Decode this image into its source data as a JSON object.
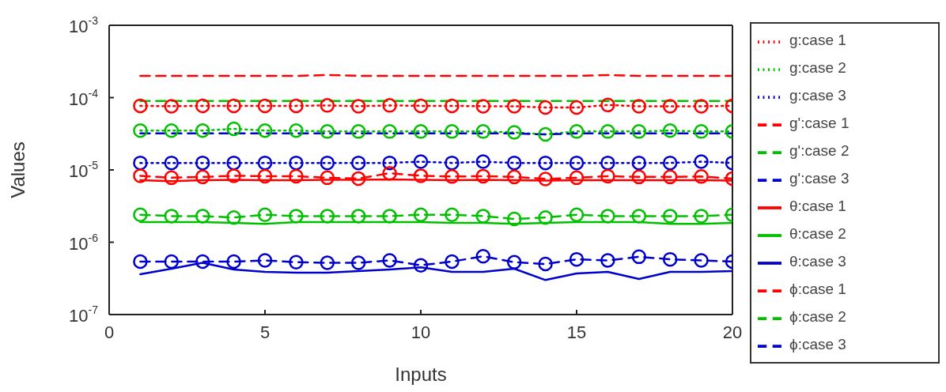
{
  "chart_data": {
    "type": "line",
    "xlabel": "Inputs",
    "ylabel": "Values",
    "log": "y",
    "x": [
      1,
      2,
      3,
      4,
      5,
      6,
      7,
      8,
      9,
      10,
      11,
      12,
      13,
      14,
      15,
      16,
      17,
      18,
      19,
      20
    ],
    "xlim": [
      0,
      20
    ],
    "xticks": [
      0,
      5,
      10,
      15,
      20
    ],
    "ylim": [
      1e-07,
      0.001
    ],
    "yticks": [
      {
        "value": 1e-07,
        "label": "10$^{-7}$"
      },
      {
        "value": 1e-06,
        "label": "10$^{-6}$"
      },
      {
        "value": 1e-05,
        "label": "10$^{-5}$"
      },
      {
        "value": 0.0001,
        "label": "10$^{-4}$"
      },
      {
        "value": 0.001,
        "label": "10$^{-3}$"
      }
    ],
    "grid": false,
    "legend": "right",
    "series": [
      {
        "name": "g:case 1",
        "color": "#ff0000",
        "line_style": "dotted",
        "marker": "circle",
        "values": [
          7.7e-05,
          7.6e-05,
          7.7e-05,
          7.7e-05,
          7.7e-05,
          7.7e-05,
          7.8e-05,
          7.6e-05,
          7.8e-05,
          7.7e-05,
          7.7e-05,
          7.6e-05,
          7.6e-05,
          7.3e-05,
          7.3e-05,
          7.9e-05,
          7.6e-05,
          7.6e-05,
          7.6e-05,
          7.7e-05
        ]
      },
      {
        "name": "g:case 2",
        "color": "#00c000",
        "line_style": "dotted",
        "marker": "circle",
        "values": [
          3.5e-05,
          3.5e-05,
          3.5e-05,
          3.7e-05,
          3.5e-05,
          3.5e-05,
          3.4e-05,
          3.4e-05,
          3.4e-05,
          3.4e-05,
          3.4e-05,
          3.4e-05,
          3.3e-05,
          3.1e-05,
          3.4e-05,
          3.4e-05,
          3.4e-05,
          3.5e-05,
          3.4e-05,
          3.4e-05
        ]
      },
      {
        "name": "g:case 3",
        "color": "#0000cc",
        "line_style": "dotted",
        "marker": "circle",
        "values": [
          1.25e-05,
          1.25e-05,
          1.25e-05,
          1.25e-05,
          1.25e-05,
          1.25e-05,
          1.25e-05,
          1.25e-05,
          1.25e-05,
          1.3e-05,
          1.25e-05,
          1.3e-05,
          1.25e-05,
          1.25e-05,
          1.25e-05,
          1.25e-05,
          1.25e-05,
          1.25e-05,
          1.3e-05,
          1.25e-05
        ]
      },
      {
        "name": "g':case 1",
        "color": "#ff0000",
        "line_style": "dashed",
        "marker": "none",
        "values": [
          0.0002,
          0.0002,
          0.0002,
          0.0002,
          0.0002,
          0.0002,
          0.000205,
          0.0002,
          0.0002,
          0.0002,
          0.0002,
          0.0002,
          0.0002,
          0.0002,
          0.0002,
          0.000205,
          0.0002,
          0.0002,
          0.0002,
          0.0002
        ]
      },
      {
        "name": "g':case 2",
        "color": "#00c000",
        "line_style": "dashed",
        "marker": "none",
        "values": [
          9e-05,
          9e-05,
          9e-05,
          9e-05,
          9e-05,
          9e-05,
          9e-05,
          9e-05,
          9e-05,
          9e-05,
          9e-05,
          9e-05,
          9e-05,
          9e-05,
          9e-05,
          9e-05,
          9e-05,
          9e-05,
          9e-05,
          9e-05
        ]
      },
      {
        "name": "g':case 3",
        "color": "#0000cc",
        "line_style": "dashed",
        "marker": "none",
        "values": [
          3.2e-05,
          3.2e-05,
          3.2e-05,
          3.2e-05,
          3.2e-05,
          3.2e-05,
          3.2e-05,
          3.2e-05,
          3.2e-05,
          3.2e-05,
          3.2e-05,
          3.2e-05,
          3.2e-05,
          3.1e-05,
          3.2e-05,
          3.2e-05,
          3.2e-05,
          3.2e-05,
          3.2e-05,
          3.2e-05
        ]
      },
      {
        "name": "θ:case 1",
        "color": "#ff0000",
        "line_style": "solid",
        "marker": "none",
        "values": [
          7.2e-06,
          7e-06,
          7.2e-06,
          7.3e-06,
          7.2e-06,
          7.2e-06,
          7.3e-06,
          7.3e-06,
          7.4e-06,
          7.3e-06,
          7.2e-06,
          7.3e-06,
          7.2e-06,
          7.1e-06,
          7.2e-06,
          7.2e-06,
          7.2e-06,
          7.2e-06,
          7.2e-06,
          7.1e-06
        ]
      },
      {
        "name": "θ:case 2",
        "color": "#00c000",
        "line_style": "solid",
        "marker": "none",
        "values": [
          1.9e-06,
          1.9e-06,
          1.9e-06,
          1.85e-06,
          1.8e-06,
          1.9e-06,
          1.9e-06,
          1.9e-06,
          1.9e-06,
          1.9e-06,
          1.85e-06,
          1.85e-06,
          1.8e-06,
          1.85e-06,
          1.9e-06,
          1.9e-06,
          1.9e-06,
          1.8e-06,
          1.8e-06,
          1.85e-06
        ]
      },
      {
        "name": "θ:case 3",
        "color": "#0000cc",
        "line_style": "solid",
        "marker": "none",
        "values": [
          3.6e-07,
          4.3e-07,
          5.2e-07,
          4.2e-07,
          3.9e-07,
          3.8e-07,
          3.8e-07,
          4e-07,
          4.2e-07,
          4.5e-07,
          3.9e-07,
          3.9e-07,
          4.3e-07,
          3e-07,
          3.7e-07,
          3.9e-07,
          3.1e-07,
          3.9e-07,
          3.9e-07,
          4e-07
        ]
      },
      {
        "name": "ϕ:case 1",
        "color": "#ff0000",
        "line_style": "dashed",
        "marker": "circle",
        "values": [
          8.3e-06,
          7.8e-06,
          8e-06,
          8.3e-06,
          8.2e-06,
          8.2e-06,
          7.8e-06,
          7.6e-06,
          9e-06,
          8.3e-06,
          8.1e-06,
          8.2e-06,
          8e-06,
          7.5e-06,
          7.8e-06,
          8.2e-06,
          8e-06,
          8e-06,
          8.1e-06,
          7.6e-06
        ]
      },
      {
        "name": "ϕ:case 2",
        "color": "#00c000",
        "line_style": "dashed",
        "marker": "circle",
        "values": [
          2.4e-06,
          2.3e-06,
          2.3e-06,
          2.2e-06,
          2.4e-06,
          2.3e-06,
          2.3e-06,
          2.3e-06,
          2.3e-06,
          2.4e-06,
          2.4e-06,
          2.3e-06,
          2.1e-06,
          2.2e-06,
          2.4e-06,
          2.3e-06,
          2.3e-06,
          2.3e-06,
          2.3e-06,
          2.4e-06
        ]
      },
      {
        "name": "ϕ:case 3",
        "color": "#0000cc",
        "line_style": "dashed",
        "marker": "circle",
        "values": [
          5.4e-07,
          5.4e-07,
          5.4e-07,
          5.4e-07,
          5.6e-07,
          5.3e-07,
          5.2e-07,
          5.2e-07,
          5.6e-07,
          4.8e-07,
          5.4e-07,
          6.4e-07,
          5.3e-07,
          5e-07,
          5.8e-07,
          5.6e-07,
          6.3e-07,
          5.8e-07,
          5.6e-07,
          5.4e-07
        ]
      }
    ]
  }
}
